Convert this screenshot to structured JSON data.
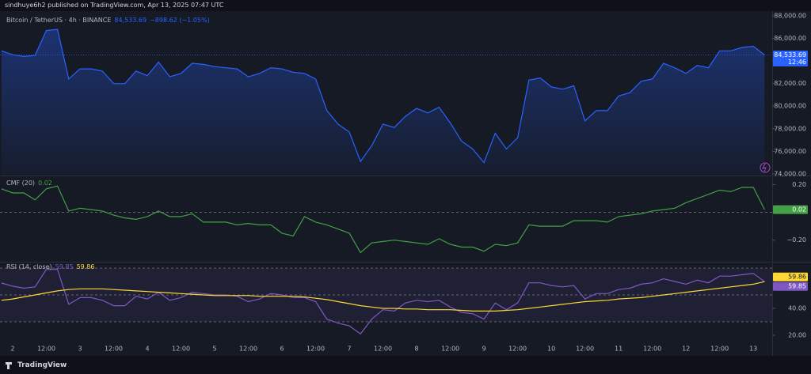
{
  "header": {
    "byline": "sindhuye6h2 published on TradingView.com, Apr 13, 2025 07:47 UTC"
  },
  "footer": {
    "brand": "TradingView"
  },
  "chart_data": [
    {
      "type": "area",
      "title": "Bitcoin / TetherUS · 4h · BINANCE",
      "last_label": "84,533.69",
      "change": "−898.62 (−1.05%)",
      "countdown": "12:46",
      "color": "#2962ff",
      "categories": [
        null,
        "2",
        null,
        null,
        "12:00",
        null,
        null,
        "3",
        null,
        null,
        "12:00",
        null,
        null,
        "4",
        null,
        null,
        "12:00",
        null,
        null,
        "5",
        null,
        null,
        "12:00",
        null,
        null,
        "6",
        null,
        null,
        "12:00",
        null,
        null,
        "7",
        null,
        null,
        "12:00",
        null,
        null,
        "8",
        null,
        null,
        "12:00",
        null,
        null,
        "9",
        null,
        null,
        "12:00",
        null,
        null,
        "10",
        null,
        null,
        "12:00",
        null,
        null,
        "11",
        null,
        null,
        "12:00",
        null,
        null,
        "12",
        null,
        null,
        "12:00",
        null,
        null,
        "13",
        null
      ],
      "values": [
        84900,
        84550,
        84400,
        84500,
        86700,
        86800,
        82400,
        83300,
        83300,
        83100,
        82000,
        82000,
        83100,
        82700,
        83900,
        82600,
        82900,
        83800,
        83700,
        83500,
        83400,
        83300,
        82600,
        82900,
        83400,
        83300,
        83000,
        82900,
        82400,
        79600,
        78400,
        77700,
        75100,
        76500,
        78400,
        78100,
        79100,
        79800,
        79400,
        79900,
        78500,
        76900,
        76200,
        75000,
        77600,
        76200,
        77200,
        82300,
        82500,
        81700,
        81500,
        81800,
        78700,
        79600,
        79600,
        80900,
        81200,
        82200,
        82400,
        83800,
        83400,
        82900,
        83600,
        83400,
        84900,
        84900,
        85200,
        85300,
        84533.69
      ],
      "ylim": [
        73850,
        88350
      ],
      "yticks": [
        {
          "value": 74000,
          "label": "74,000.00"
        },
        {
          "value": 76000,
          "label": "76,000.00"
        },
        {
          "value": 78000,
          "label": "78,000.00"
        },
        {
          "value": 80000,
          "label": "80,000.00"
        },
        {
          "value": 82000,
          "label": "82,000.00"
        },
        {
          "value": 84000,
          "label": "84,000.00"
        },
        {
          "value": 86000,
          "label": "86,000.00"
        },
        {
          "value": 88000,
          "label": "88,000.00"
        }
      ]
    },
    {
      "type": "line",
      "title": "CMF (20)",
      "last_label": "0.02",
      "color": "#43a047",
      "values": [
        0.17,
        0.14,
        0.14,
        0.09,
        0.17,
        0.19,
        0.01,
        0.03,
        0.02,
        0.01,
        -0.02,
        -0.04,
        -0.05,
        -0.03,
        0.01,
        -0.03,
        -0.03,
        -0.01,
        -0.07,
        -0.07,
        -0.07,
        -0.09,
        -0.08,
        -0.09,
        -0.09,
        -0.15,
        -0.17,
        -0.03,
        -0.07,
        -0.09,
        -0.12,
        -0.15,
        -0.29,
        -0.22,
        -0.21,
        -0.2,
        -0.21,
        -0.22,
        -0.23,
        -0.19,
        -0.23,
        -0.25,
        -0.25,
        -0.28,
        -0.23,
        -0.24,
        -0.22,
        -0.09,
        -0.1,
        -0.1,
        -0.1,
        -0.06,
        -0.06,
        -0.06,
        -0.07,
        -0.03,
        -0.02,
        -0.01,
        0.01,
        0.02,
        0.03,
        0.07,
        0.1,
        0.13,
        0.16,
        0.15,
        0.18,
        0.18,
        0.02
      ],
      "ylim": [
        -0.35,
        0.26
      ],
      "levels": [
        0
      ],
      "yticks": [
        {
          "value": 0.2,
          "label": "0.20"
        },
        {
          "value": -0.2,
          "label": "−0.20"
        }
      ]
    },
    {
      "type": "line",
      "title": "RSI (14, close)",
      "ylim": [
        15.3,
        74.1
      ],
      "levels": [
        70,
        50,
        30
      ],
      "band": [
        30,
        70
      ],
      "series": [
        {
          "color": "#7e57c2",
          "last_label": "59.85",
          "values": [
            58.8,
            56.5,
            55,
            56,
            69,
            69,
            43,
            48,
            48,
            46,
            42,
            42,
            49,
            47,
            52,
            46,
            48,
            52,
            51,
            50,
            50,
            49,
            45,
            47,
            51,
            50,
            48,
            48,
            45,
            32,
            29,
            27,
            21,
            32,
            39,
            38,
            44,
            46,
            45,
            46,
            41,
            37,
            36,
            32,
            44,
            39,
            44,
            59,
            59,
            57,
            56,
            57,
            47,
            51,
            51,
            54,
            55,
            58,
            59,
            62,
            60,
            58,
            61,
            59,
            64,
            64,
            65,
            66,
            59.85
          ]
        },
        {
          "color": "#fdd835",
          "last_label": "59.86",
          "values": [
            46,
            47,
            48.5,
            50,
            51.5,
            53,
            54,
            54.5,
            54.5,
            54.5,
            54,
            53.5,
            53,
            52.5,
            52,
            51.5,
            51,
            50.5,
            50,
            49.5,
            49.5,
            49.5,
            49.5,
            49,
            49,
            49,
            49,
            48.5,
            47.5,
            46.5,
            45,
            43.5,
            42,
            41,
            40,
            40,
            39.5,
            39.5,
            39,
            39,
            39,
            38.5,
            38,
            38,
            38,
            38.5,
            39,
            40,
            41,
            42,
            43,
            44,
            45,
            45.5,
            46,
            47,
            47.5,
            48,
            49,
            50,
            51,
            52,
            53,
            54,
            55,
            56,
            57,
            58,
            59.86
          ]
        }
      ],
      "yticks": [
        {
          "value": 40,
          "label": "40.00"
        },
        {
          "value": 20,
          "label": "20.00"
        }
      ]
    }
  ]
}
